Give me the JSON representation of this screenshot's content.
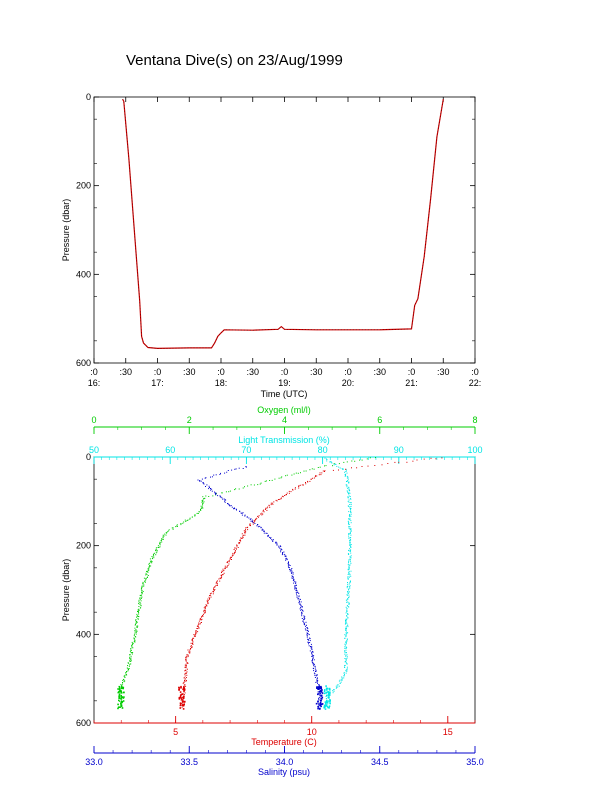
{
  "title": "Ventana Dive(s) on 23/Aug/1999",
  "colors": {
    "axis": "#000000",
    "pressure_trace": "#cc0000",
    "oxygen": "#00cc00",
    "light_transmission": "#00e5e5",
    "temperature": "#dd0000",
    "salinity": "#0000cc"
  },
  "chart_data": [
    {
      "type": "line",
      "xlabel": "Time (UTC)",
      "ylabel": "Pressure (dbar)",
      "y_reversed": true,
      "ylim": [
        0,
        600
      ],
      "y_ticks": [
        "0",
        "200",
        "400",
        "600"
      ],
      "x_ticks": [
        {
          "top": ":0",
          "bottom": "16:"
        },
        {
          "top": ":30",
          "bottom": ""
        },
        {
          "top": ":0",
          "bottom": "17:"
        },
        {
          "top": ":30",
          "bottom": ""
        },
        {
          "top": ":0",
          "bottom": "18:"
        },
        {
          "top": ":30",
          "bottom": ""
        },
        {
          "top": ":0",
          "bottom": "19:"
        },
        {
          "top": ":30",
          "bottom": ""
        },
        {
          "top": ":0",
          "bottom": "20:"
        },
        {
          "top": ":30",
          "bottom": ""
        },
        {
          "top": ":0",
          "bottom": "21:"
        },
        {
          "top": ":30",
          "bottom": ""
        },
        {
          "top": ":0",
          "bottom": "22:"
        }
      ],
      "xlim_hours": [
        16.0,
        22.0
      ],
      "series": [
        {
          "color": "pressure_trace",
          "points": [
            [
              16.45,
              5
            ],
            [
              16.47,
              10
            ],
            [
              16.55,
              140
            ],
            [
              16.65,
              330
            ],
            [
              16.72,
              460
            ],
            [
              16.75,
              540
            ],
            [
              16.78,
              555
            ],
            [
              16.85,
              565
            ],
            [
              17.0,
              567
            ],
            [
              17.5,
              566
            ],
            [
              17.85,
              566
            ],
            [
              17.9,
              555
            ],
            [
              17.95,
              540
            ],
            [
              18.0,
              532
            ],
            [
              18.05,
              525
            ],
            [
              18.5,
              526
            ],
            [
              18.9,
              524
            ],
            [
              18.95,
              518
            ],
            [
              19.0,
              524
            ],
            [
              19.5,
              525
            ],
            [
              20.5,
              525
            ],
            [
              21.0,
              523
            ],
            [
              21.05,
              470
            ],
            [
              21.1,
              455
            ],
            [
              21.2,
              360
            ],
            [
              21.3,
              230
            ],
            [
              21.4,
              90
            ],
            [
              21.5,
              5
            ]
          ]
        }
      ]
    },
    {
      "type": "scatter",
      "ylabel": "Pressure (dbar)",
      "y_reversed": true,
      "ylim": [
        0,
        600
      ],
      "y_ticks": [
        "0",
        "200",
        "400",
        "600"
      ],
      "axes": [
        {
          "label": "Oxygen (ml/l)",
          "color": "oxygen",
          "position": "top-outer",
          "range": [
            0,
            8
          ],
          "ticks": [
            "0",
            "2",
            "4",
            "6",
            "8"
          ]
        },
        {
          "label": "Light Transmission (%)",
          "color": "light_transmission",
          "position": "top-inner",
          "range": [
            50,
            100
          ],
          "ticks": [
            "50",
            "60",
            "70",
            "80",
            "90",
            "100"
          ]
        },
        {
          "label": "Temperature (C)",
          "color": "temperature",
          "position": "bottom-inner",
          "range": [
            2,
            16
          ],
          "ticks": [
            "5",
            "10",
            "15"
          ]
        },
        {
          "label": "Salinity (psu)",
          "color": "salinity",
          "position": "bottom-outer",
          "range": [
            33.0,
            35.0
          ],
          "ticks": [
            "33.0",
            "33.5",
            "34.0",
            "34.5",
            "35.0"
          ]
        }
      ],
      "series": [
        {
          "axis": "Oxygen (ml/l)",
          "color": "oxygen",
          "profile": [
            [
              5.9,
              0
            ],
            [
              4.8,
              20
            ],
            [
              3.4,
              60
            ],
            [
              2.3,
              90
            ],
            [
              2.25,
              120
            ],
            [
              1.5,
              170
            ],
            [
              1.2,
              230
            ],
            [
              1.0,
              300
            ],
            [
              0.85,
              400
            ],
            [
              0.7,
              480
            ],
            [
              0.55,
              520
            ],
            [
              0.55,
              565
            ]
          ]
        },
        {
          "axis": "Light Transmission (%)",
          "color": "light_transmission",
          "profile": [
            [
              80,
              0
            ],
            [
              83,
              30
            ],
            [
              83.5,
              100
            ],
            [
              83.5,
              250
            ],
            [
              83.0,
              400
            ],
            [
              83.0,
              480
            ],
            [
              82.0,
              515
            ],
            [
              80.5,
              540
            ],
            [
              80.5,
              565
            ]
          ]
        },
        {
          "axis": "Temperature (C)",
          "color": "temperature",
          "profile": [
            [
              14.8,
              0
            ],
            [
              10.5,
              30
            ],
            [
              8.6,
              100
            ],
            [
              7.6,
              160
            ],
            [
              6.8,
              250
            ],
            [
              6.2,
              320
            ],
            [
              5.7,
              400
            ],
            [
              5.4,
              450
            ],
            [
              5.3,
              520
            ],
            [
              5.2,
              565
            ]
          ]
        },
        {
          "axis": "Salinity (psu)",
          "color": "salinity",
          "profile": [
            [
              33.8,
              20
            ],
            [
              33.55,
              50
            ],
            [
              33.72,
              110
            ],
            [
              33.85,
              150
            ],
            [
              33.97,
              200
            ],
            [
              34.03,
              250
            ],
            [
              34.08,
              330
            ],
            [
              34.12,
              400
            ],
            [
              34.15,
              460
            ],
            [
              34.17,
              510
            ],
            [
              34.18,
              520
            ],
            [
              34.18,
              565
            ]
          ]
        }
      ]
    }
  ]
}
